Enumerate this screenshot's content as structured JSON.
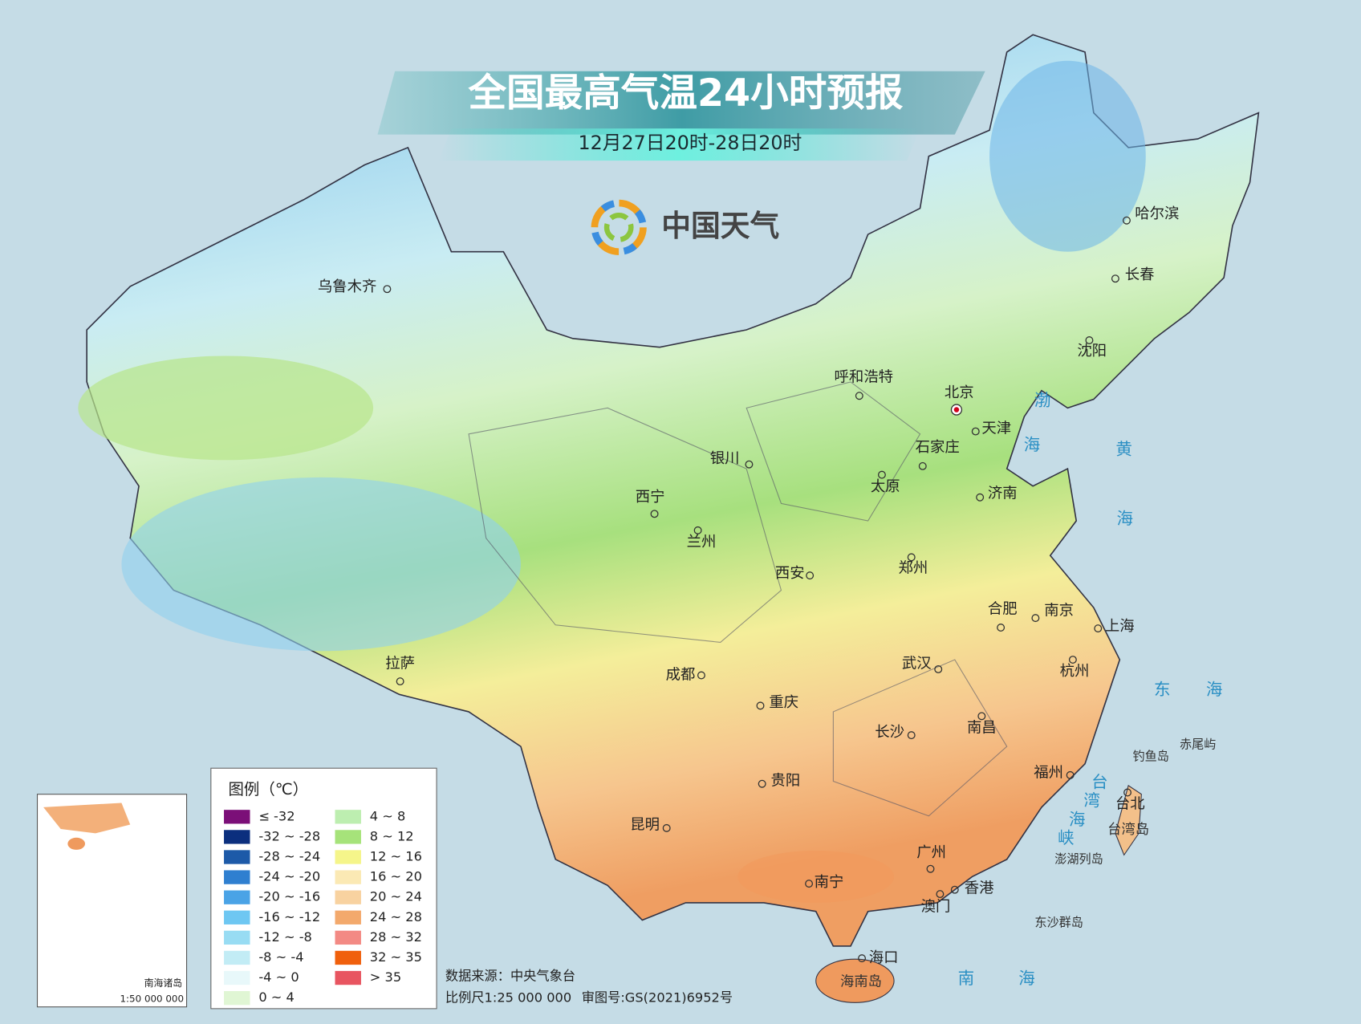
{
  "header": {
    "title": "全国最高气温24小时预报",
    "subtitle": "12月27日20时-28日20时",
    "brand": "中国天气"
  },
  "cities": [
    "乌鲁木齐",
    "哈尔滨",
    "长春",
    "沈阳",
    "呼和浩特",
    "北京",
    "天津",
    "石家庄",
    "太原",
    "济南",
    "银川",
    "西宁",
    "兰州",
    "西安",
    "郑州",
    "合肥",
    "南京",
    "上海",
    "杭州",
    "武汉",
    "成都",
    "重庆",
    "长沙",
    "南昌",
    "拉萨",
    "贵阳",
    "福州",
    "台北",
    "昆明",
    "广州",
    "南宁",
    "香港",
    "澳门",
    "海口"
  ],
  "islands": [
    "台湾岛",
    "钓鱼岛",
    "赤尾屿",
    "澎湖列岛",
    "东沙群岛",
    "海南岛"
  ],
  "seas": [
    "渤",
    "海",
    "黄",
    "海",
    "东",
    "海",
    "台",
    "湾",
    "海",
    "峡",
    "南",
    "海"
  ],
  "legend": {
    "title": "图例（℃）",
    "items": [
      {
        "label": "≤ -32",
        "color": "#7b0f78"
      },
      {
        "label": "-32 ~ -28",
        "color": "#0b2f7e"
      },
      {
        "label": "-28 ~ -24",
        "color": "#1d5aa8"
      },
      {
        "label": "-24 ~ -20",
        "color": "#2f7fd0"
      },
      {
        "label": "-20 ~ -16",
        "color": "#4aa3e6"
      },
      {
        "label": "-16 ~ -12",
        "color": "#6ec7f2"
      },
      {
        "label": "-12 ~ -8",
        "color": "#98dcf3"
      },
      {
        "label": "-8 ~ -4",
        "color": "#c2ecf5"
      },
      {
        "label": "-4 ~ 0",
        "color": "#e8f8fa"
      },
      {
        "label": "0 ~ 4",
        "color": "#e0f6d4"
      },
      {
        "label": "4 ~ 8",
        "color": "#bdeeb0"
      },
      {
        "label": "8 ~ 12",
        "color": "#a6e37a"
      },
      {
        "label": "12 ~ 16",
        "color": "#f5f58a"
      },
      {
        "label": "16 ~ 20",
        "color": "#fbe9b4"
      },
      {
        "label": "20 ~ 24",
        "color": "#f8d2a0"
      },
      {
        "label": "24 ~ 28",
        "color": "#f3a96c"
      },
      {
        "label": "28 ~ 32",
        "color": "#f38a84"
      },
      {
        "label": "32 ~ 35",
        "color": "#f0600c"
      },
      {
        "label": "> 35",
        "color": "#e85560"
      }
    ]
  },
  "footer": {
    "source": "数据来源：中央气象台",
    "scale": "比例尺1:25 000 000",
    "approval": "审图号:GS(2021)6952号"
  },
  "inset": {
    "title": "南海诸岛",
    "scale": "1:50 000 000"
  }
}
